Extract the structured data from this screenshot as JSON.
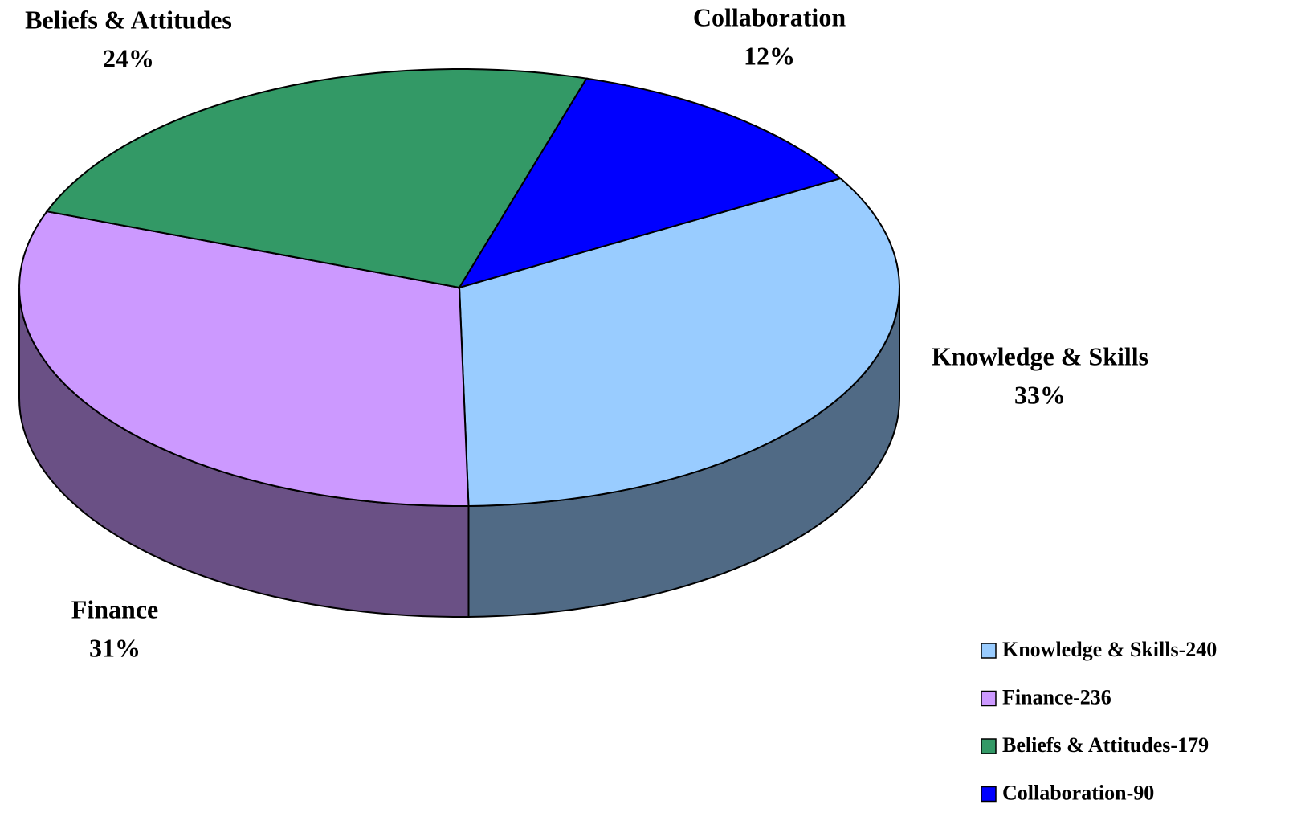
{
  "chart_data": {
    "type": "pie3d",
    "categories": [
      "Knowledge & Skills",
      "Finance",
      "Beliefs & Attitudes",
      "Collaboration"
    ],
    "values": [
      33,
      31,
      24,
      12
    ],
    "value_labels": [
      "33%",
      "31%",
      "24%",
      "12%"
    ],
    "colors": [
      "#99ccff",
      "#cc99ff",
      "#339966",
      "#0000ff"
    ],
    "legend_labels": [
      "Knowledge & Skills-240",
      "Finance-236",
      "Beliefs & Attitudes-179",
      "Collaboration-90"
    ]
  }
}
